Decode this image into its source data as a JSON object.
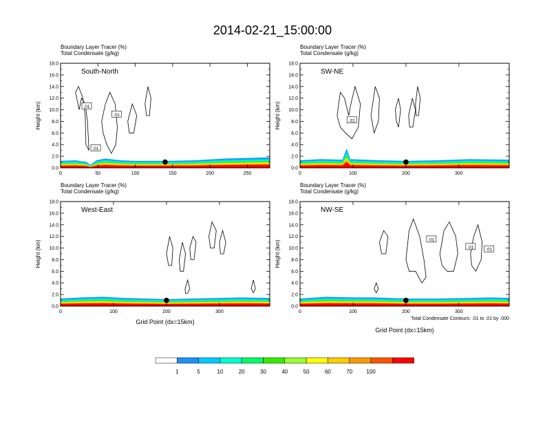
{
  "figure": {
    "title": "2014-02-21_15:00:00",
    "colorbar": {
      "colors": [
        "#ffffff",
        "#1e90ff",
        "#00ccff",
        "#00ffcc",
        "#00ff66",
        "#33ee00",
        "#99ff33",
        "#ffff00",
        "#ffcc00",
        "#ff9900",
        "#ff5500",
        "#ff0000"
      ],
      "labels": [
        "1",
        "5",
        "10",
        "20",
        "30",
        "40",
        "50",
        "60",
        "70",
        "100"
      ]
    },
    "contour_note": "Total Condensate Contours: .01 to .01 by .000",
    "xlabel": "Grid Point (dx=15km)",
    "ylabel": "Height (km)",
    "field_title": "Boundary Layer Tracer",
    "field_units": "(%)",
    "contour_title": "Total Condensate",
    "contour_units": "(g/kg)",
    "contour_label": ".01"
  },
  "chart_data": [
    {
      "type": "heatmap",
      "panel": "South-North",
      "title": "South-North",
      "subtitle_lines": [
        "Boundary Layer Tracer (%)",
        "Total Condensate (g/kg)"
      ],
      "xlabel": "",
      "ylabel": "Height (km)",
      "xlim": [
        0,
        280
      ],
      "ylim": [
        0,
        18
      ],
      "xticks": [
        0,
        50,
        100,
        150,
        200,
        250
      ],
      "yticks": [
        "0.0",
        "2.0",
        "4.0",
        "6.0",
        "8.0",
        "10.0",
        "12.0",
        "14.0",
        "16.0",
        "18.0"
      ],
      "marker_x": 140,
      "boundary_layer_top_km": [
        [
          0,
          1.2
        ],
        [
          20,
          1.3
        ],
        [
          35,
          1.0
        ],
        [
          40,
          0.5
        ],
        [
          48,
          1.3
        ],
        [
          60,
          1.6
        ],
        [
          80,
          1.3
        ],
        [
          100,
          1.2
        ],
        [
          140,
          1.2
        ],
        [
          180,
          1.3
        ],
        [
          220,
          1.6
        ],
        [
          250,
          1.7
        ],
        [
          280,
          1.8
        ]
      ],
      "contours": [
        [
          [
            25,
            10
          ],
          [
            20,
            13
          ],
          [
            24,
            14
          ],
          [
            30,
            12
          ],
          [
            33,
            9
          ],
          [
            34,
            4
          ],
          [
            38,
            3
          ],
          [
            36,
            8
          ],
          [
            33,
            11
          ],
          [
            28,
            12
          ],
          [
            25,
            10
          ]
        ],
        [
          [
            55,
            8
          ],
          [
            60,
            11
          ],
          [
            66,
            13
          ],
          [
            73,
            11
          ],
          [
            76,
            7
          ],
          [
            74,
            4
          ],
          [
            68,
            2.5
          ],
          [
            62,
            4
          ],
          [
            57,
            6
          ],
          [
            55,
            8
          ]
        ],
        [
          [
            90,
            8
          ],
          [
            96,
            11
          ],
          [
            102,
            9
          ],
          [
            98,
            6
          ],
          [
            92,
            6
          ],
          [
            90,
            8
          ]
        ],
        [
          [
            113,
            11
          ],
          [
            117,
            14
          ],
          [
            121,
            12
          ],
          [
            119,
            9
          ],
          [
            115,
            9
          ],
          [
            113,
            11
          ]
        ]
      ],
      "contour_labels": [
        [
          35,
          10.6
        ],
        [
          75,
          9.2
        ],
        [
          47,
          3.4
        ]
      ]
    },
    {
      "type": "heatmap",
      "panel": "SW-NE",
      "title": "SW-NE",
      "subtitle_lines": [
        "Boundary Layer Tracer (%)",
        "Total Condensate (g/kg)"
      ],
      "xlabel": "",
      "ylabel": "Height (km)",
      "xlim": [
        0,
        395
      ],
      "ylim": [
        0,
        18
      ],
      "xticks": [
        0,
        100,
        200,
        300
      ],
      "yticks": [
        "0.0",
        "2.0",
        "4.0",
        "6.0",
        "8.0",
        "10.0",
        "12.0",
        "14.0",
        "16.0",
        "18.0"
      ],
      "marker_x": 200,
      "boundary_layer_top_km": [
        [
          0,
          1.3
        ],
        [
          40,
          1.5
        ],
        [
          80,
          1.4
        ],
        [
          88,
          3.3
        ],
        [
          95,
          1.5
        ],
        [
          150,
          1.3
        ],
        [
          200,
          1.2
        ],
        [
          260,
          1.3
        ],
        [
          320,
          1.5
        ],
        [
          395,
          1.4
        ]
      ],
      "contours": [
        [
          [
            70,
            9
          ],
          [
            76,
            13
          ],
          [
            84,
            12
          ],
          [
            92,
            9
          ],
          [
            96,
            11
          ],
          [
            104,
            14
          ],
          [
            114,
            11
          ],
          [
            110,
            7
          ],
          [
            98,
            5
          ],
          [
            86,
            6
          ],
          [
            76,
            7
          ],
          [
            70,
            9
          ]
        ],
        [
          [
            134,
            9
          ],
          [
            142,
            14
          ],
          [
            150,
            12
          ],
          [
            148,
            8
          ],
          [
            140,
            6
          ],
          [
            134,
            9
          ]
        ],
        [
          [
            180,
            10
          ],
          [
            186,
            12
          ],
          [
            190,
            10
          ],
          [
            186,
            7
          ],
          [
            182,
            8
          ],
          [
            180,
            10
          ]
        ],
        [
          [
            205,
            9
          ],
          [
            212,
            12
          ],
          [
            218,
            10
          ],
          [
            213,
            7
          ],
          [
            207,
            7
          ],
          [
            205,
            9
          ]
        ],
        [
          [
            218,
            11
          ],
          [
            222,
            14
          ],
          [
            227,
            12
          ],
          [
            224,
            9
          ],
          [
            219,
            9
          ],
          [
            218,
            11
          ]
        ]
      ],
      "contour_labels": [
        [
          98,
          8.2
        ]
      ]
    },
    {
      "type": "heatmap",
      "panel": "West-East",
      "title": "West-East",
      "subtitle_lines": [
        "Boundary Layer Tracer (%)",
        "Total Condensate (g/kg)"
      ],
      "xlabel": "Grid Point (dx=15km)",
      "ylabel": "Height (km)",
      "xlim": [
        0,
        395
      ],
      "ylim": [
        0,
        18
      ],
      "xticks": [
        0,
        100,
        200,
        300
      ],
      "yticks": [
        "0.0",
        "2.0",
        "4.0",
        "6.0",
        "8.0",
        "10.0",
        "12.0",
        "14.0",
        "16.0",
        "18.0"
      ],
      "marker_x": 200,
      "boundary_layer_top_km": [
        [
          0,
          1.3
        ],
        [
          40,
          1.5
        ],
        [
          80,
          1.6
        ],
        [
          120,
          1.4
        ],
        [
          160,
          1.3
        ],
        [
          200,
          1.2
        ],
        [
          250,
          1.3
        ],
        [
          300,
          1.4
        ],
        [
          340,
          1.5
        ],
        [
          395,
          1.4
        ]
      ],
      "contours": [
        [
          [
            200,
            9
          ],
          [
            206,
            12
          ],
          [
            212,
            10
          ],
          [
            210,
            7
          ],
          [
            204,
            7
          ],
          [
            200,
            9
          ]
        ],
        [
          [
            224,
            8
          ],
          [
            230,
            11
          ],
          [
            236,
            9
          ],
          [
            232,
            6
          ],
          [
            226,
            6
          ],
          [
            224,
            8
          ]
        ],
        [
          [
            244,
            10
          ],
          [
            250,
            12
          ],
          [
            256,
            11
          ],
          [
            252,
            8
          ],
          [
            246,
            8
          ],
          [
            244,
            10
          ]
        ],
        [
          [
            280,
            12
          ],
          [
            286,
            14.5
          ],
          [
            294,
            13
          ],
          [
            290,
            10
          ],
          [
            283,
            10
          ],
          [
            280,
            12
          ]
        ],
        [
          [
            300,
            11
          ],
          [
            306,
            13
          ],
          [
            312,
            11
          ],
          [
            308,
            9
          ],
          [
            302,
            9
          ],
          [
            300,
            11
          ]
        ],
        [
          [
            235,
            3
          ],
          [
            240,
            4.5
          ],
          [
            244,
            3
          ],
          [
            240,
            2.2
          ],
          [
            236,
            2.2
          ],
          [
            235,
            3
          ]
        ],
        [
          [
            360,
            3
          ],
          [
            364,
            4.5
          ],
          [
            368,
            3
          ],
          [
            364,
            2.3
          ],
          [
            360,
            3
          ]
        ]
      ],
      "contour_labels": []
    },
    {
      "type": "heatmap",
      "panel": "NW-SE",
      "title": "NW-SE",
      "subtitle_lines": [
        "Boundary Layer Tracer (%)",
        "Total Condensate (g/kg)"
      ],
      "xlabel": "Grid Point (dx=15km)",
      "ylabel": "Height (km)",
      "xlim": [
        0,
        395
      ],
      "ylim": [
        0,
        18
      ],
      "xticks": [
        0,
        100,
        200,
        300
      ],
      "yticks": [
        "0.0",
        "2.0",
        "4.0",
        "6.0",
        "8.0",
        "10.0",
        "12.0",
        "14.0",
        "16.0",
        "18.0"
      ],
      "marker_x": 200,
      "boundary_layer_top_km": [
        [
          0,
          1.3
        ],
        [
          50,
          1.6
        ],
        [
          100,
          1.5
        ],
        [
          140,
          1.5
        ],
        [
          200,
          1.3
        ],
        [
          260,
          1.3
        ],
        [
          320,
          1.4
        ],
        [
          360,
          1.5
        ],
        [
          395,
          1.4
        ]
      ],
      "contours": [
        [
          [
            150,
            11
          ],
          [
            158,
            13
          ],
          [
            166,
            12
          ],
          [
            162,
            9
          ],
          [
            154,
            9
          ],
          [
            150,
            11
          ]
        ],
        [
          [
            200,
            8
          ],
          [
            206,
            13
          ],
          [
            214,
            15
          ],
          [
            226,
            12
          ],
          [
            234,
            8
          ],
          [
            238,
            5
          ],
          [
            230,
            4
          ],
          [
            218,
            6
          ],
          [
            206,
            6
          ],
          [
            200,
            8
          ]
        ],
        [
          [
            264,
            9
          ],
          [
            272,
            13
          ],
          [
            282,
            14.5
          ],
          [
            294,
            12
          ],
          [
            298,
            9
          ],
          [
            290,
            6
          ],
          [
            278,
            6
          ],
          [
            268,
            7
          ],
          [
            264,
            9
          ]
        ],
        [
          [
            322,
            9
          ],
          [
            328,
            12
          ],
          [
            336,
            14
          ],
          [
            344,
            11
          ],
          [
            342,
            8
          ],
          [
            332,
            6
          ],
          [
            324,
            7
          ],
          [
            322,
            9
          ]
        ],
        [
          [
            140,
            3
          ],
          [
            144,
            4
          ],
          [
            148,
            3
          ],
          [
            144,
            2.3
          ],
          [
            140,
            3
          ]
        ]
      ],
      "contour_labels": [
        [
          248,
          11.5
        ],
        [
          322,
          10.2
        ],
        [
          357,
          9.8
        ]
      ]
    }
  ]
}
